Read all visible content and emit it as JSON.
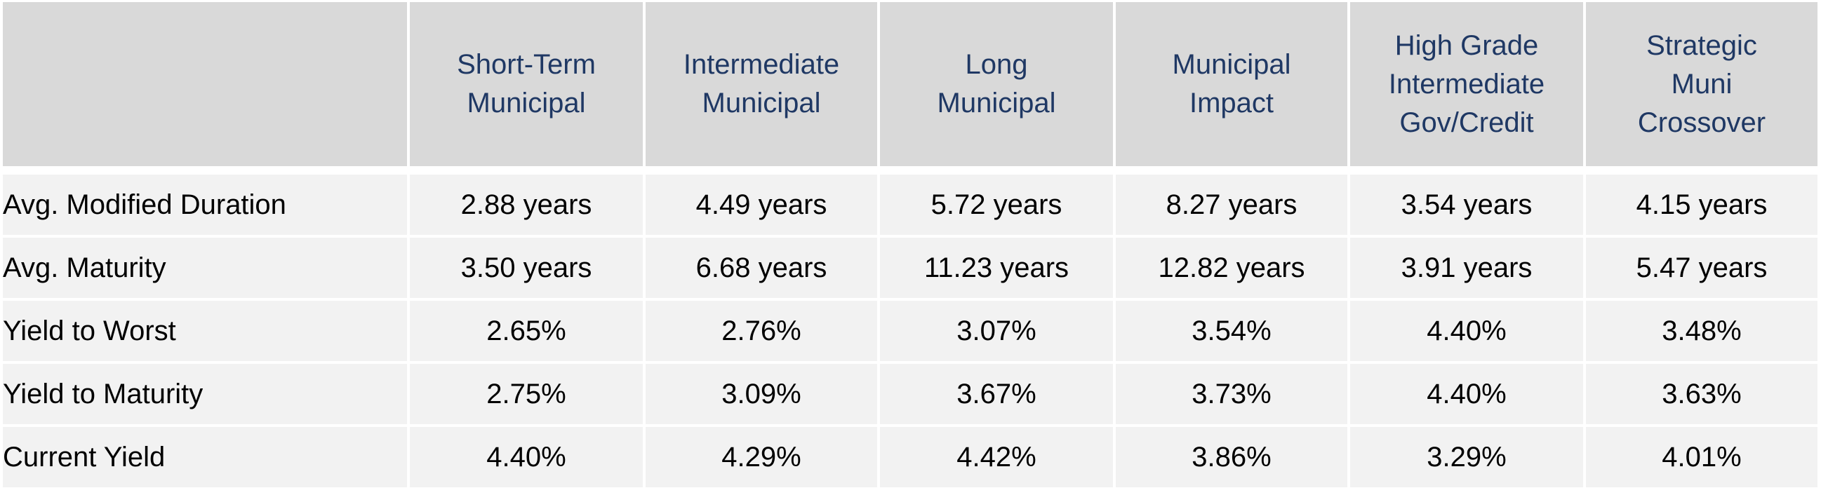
{
  "table": {
    "columns": [
      "",
      "Short-Term\nMunicipal",
      "Intermediate\nMunicipal",
      "Long\nMunicipal",
      "Municipal\nImpact",
      "High Grade\nIntermediate\nGov/Credit",
      "Strategic\nMuni\nCrossover"
    ],
    "rows": [
      {
        "label": "Avg. Modified Duration",
        "values": [
          "2.88 years",
          "4.49 years",
          "5.72 years",
          "8.27 years",
          "3.54 years",
          "4.15 years"
        ]
      },
      {
        "label": "Avg. Maturity",
        "values": [
          "3.50 years",
          "6.68 years",
          "11.23 years",
          "12.82 years",
          "3.91 years",
          "5.47 years"
        ]
      },
      {
        "label": "Yield to Worst",
        "values": [
          "2.65%",
          "2.76%",
          "3.07%",
          "3.54%",
          "4.40%",
          "3.48%"
        ]
      },
      {
        "label": "Yield to Maturity",
        "values": [
          "2.75%",
          "3.09%",
          "3.67%",
          "3.73%",
          "4.40%",
          "3.63%"
        ]
      },
      {
        "label": "Current Yield",
        "values": [
          "4.40%",
          "4.29%",
          "4.42%",
          "3.86%",
          "3.29%",
          "4.01%"
        ]
      }
    ]
  }
}
